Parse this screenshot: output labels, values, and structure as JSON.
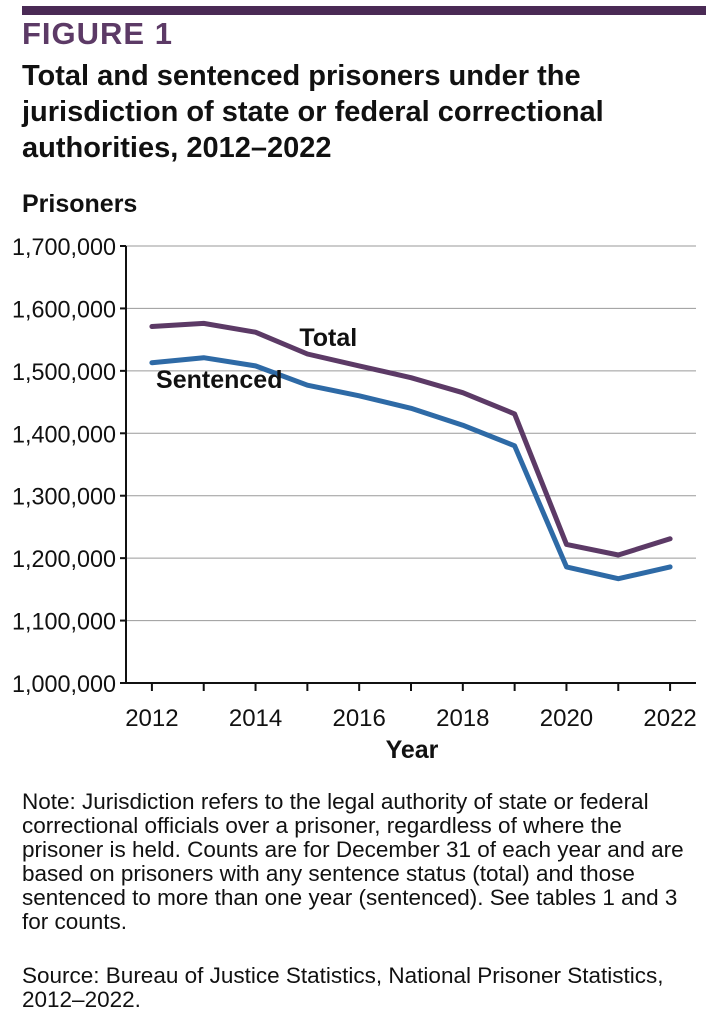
{
  "header": {
    "figure_label": "FIGURE 1",
    "title": "Total and sentenced prisoners under the jurisdiction of state or federal correctional authorities, 2012–2022"
  },
  "chart_data": {
    "type": "line",
    "title": "Total and sentenced prisoners under the jurisdiction of state or federal correctional authorities, 2012–2022",
    "xlabel": "Year",
    "ylabel": "Prisoners",
    "x": [
      2012,
      2013,
      2014,
      2015,
      2016,
      2017,
      2018,
      2019,
      2020,
      2021,
      2022
    ],
    "xticks": [
      "2012",
      "2014",
      "2016",
      "2018",
      "2020",
      "2022"
    ],
    "yticks": [
      "1,000,000",
      "1,100,000",
      "1,200,000",
      "1,300,000",
      "1,400,000",
      "1,500,000",
      "1,600,000",
      "1,700,000"
    ],
    "ylim": [
      1000000,
      1700000
    ],
    "xlim": [
      2011.5,
      2022.5
    ],
    "grid": true,
    "series": [
      {
        "name": "Total",
        "color": "#5c3a66",
        "values": [
          1571000,
          1576000,
          1562000,
          1527000,
          1508000,
          1489000,
          1465000,
          1431000,
          1222000,
          1205000,
          1231000
        ]
      },
      {
        "name": "Sentenced",
        "color": "#2e6aa6",
        "values": [
          1513000,
          1521000,
          1508000,
          1477000,
          1460000,
          1440000,
          1413000,
          1380000,
          1186000,
          1167000,
          1186000
        ]
      }
    ],
    "annotations": [
      {
        "text": "Total",
        "series": "Total"
      },
      {
        "text": "Sentenced",
        "series": "Sentenced"
      }
    ]
  },
  "footer": {
    "note": "Note: Jurisdiction refers to the legal authority of state or federal correctional officials over a prisoner, regardless of where the prisoner is held. Counts are for December 31 of each year and are based on prisoners with any sentence status (total) and those sentenced to more than one year (sentenced). See tables 1 and 3 for counts.",
    "source": "Source: Bureau of Justice Statistics, National Prisoner Statistics, 2012–2022."
  },
  "colors": {
    "accent": "#4a2a55",
    "figure_label": "#5c3a66",
    "grid": "#9a9a9a",
    "axis": "#111111"
  }
}
